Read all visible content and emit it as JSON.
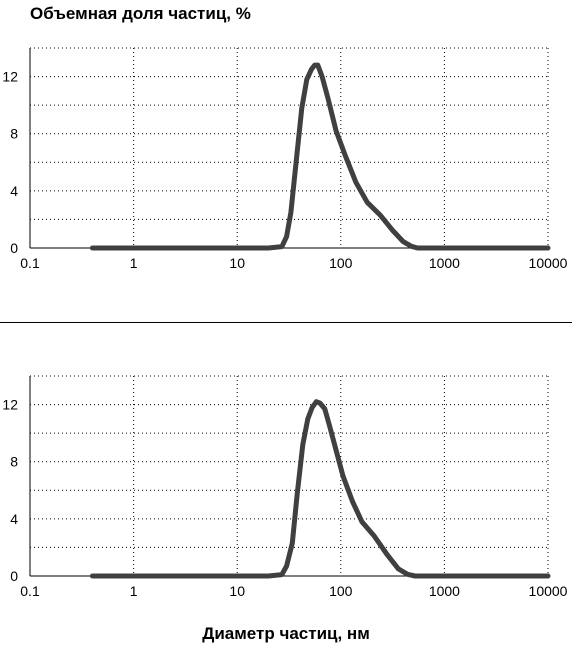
{
  "title": "Объемная доля частиц, %",
  "xlabel": "Диаметр частиц, нм",
  "chart_data": [
    {
      "type": "line",
      "xscale": "log",
      "xlim": [
        0.1,
        10000
      ],
      "ylim": [
        0,
        14
      ],
      "xticks": [
        "0.1",
        "1",
        "10",
        "100",
        "1000",
        "10000"
      ],
      "yticks": [
        "0",
        "4",
        "8",
        "12"
      ],
      "grid": true,
      "line_color": "#404040",
      "series": [
        {
          "x": [
            0.4,
            20,
            27,
            30,
            33,
            37,
            42,
            47,
            52,
            56,
            60,
            66,
            75,
            90,
            110,
            140,
            180,
            240,
            320,
            400,
            480,
            550,
            1000,
            10000
          ],
          "y": [
            0,
            0,
            0.1,
            0.8,
            2.5,
            6.0,
            9.8,
            11.8,
            12.5,
            12.8,
            12.8,
            12.0,
            10.5,
            8.2,
            6.5,
            4.6,
            3.2,
            2.3,
            1.2,
            0.45,
            0.12,
            0,
            0,
            0
          ]
        }
      ]
    },
    {
      "type": "line",
      "xscale": "log",
      "xlim": [
        0.1,
        10000
      ],
      "ylim": [
        0,
        14
      ],
      "xticks": [
        "0.1",
        "1",
        "10",
        "100",
        "1000",
        "10000"
      ],
      "yticks": [
        "0",
        "4",
        "8",
        "12"
      ],
      "grid": true,
      "line_color": "#404040",
      "series": [
        {
          "x": [
            0.4,
            20,
            27,
            30,
            34,
            38,
            43,
            48,
            53,
            58,
            63,
            70,
            78,
            90,
            105,
            130,
            160,
            210,
            280,
            360,
            440,
            520,
            1000,
            10000
          ],
          "y": [
            0,
            0,
            0.1,
            0.7,
            2.3,
            5.8,
            9.2,
            11.0,
            11.8,
            12.2,
            12.1,
            11.7,
            10.5,
            8.8,
            7.0,
            5.2,
            3.8,
            2.8,
            1.5,
            0.5,
            0.12,
            0,
            0,
            0
          ]
        }
      ]
    }
  ]
}
